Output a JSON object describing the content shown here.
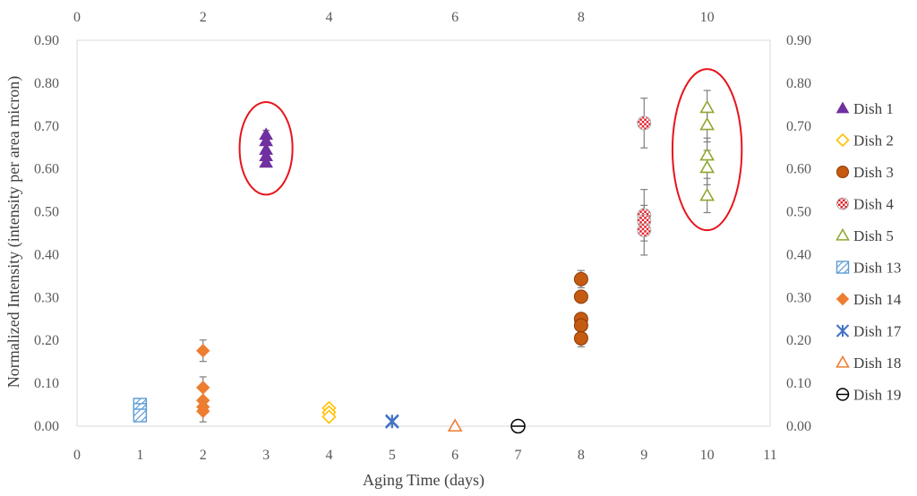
{
  "chart_data": {
    "type": "scatter",
    "xlabel": "Aging Time (days)",
    "ylabel": "Normalized Intensity (intensity per area micron)",
    "xlim": [
      0,
      11
    ],
    "ylim": [
      0,
      0.9
    ],
    "x_ticks": [
      "0",
      "1",
      "2",
      "3",
      "4",
      "5",
      "6",
      "7",
      "8",
      "9",
      "10",
      "11"
    ],
    "x2_ticks": [
      "0",
      "2",
      "4",
      "6",
      "8",
      "10"
    ],
    "y_ticks": [
      "0.00",
      "0.10",
      "0.20",
      "0.30",
      "0.40",
      "0.50",
      "0.60",
      "0.70",
      "0.80",
      "0.90"
    ],
    "grid": false,
    "legend_position": "right",
    "series": [
      {
        "name": "Dish 1",
        "marker": "triangle-filled",
        "color": "#7030a0",
        "x": [
          3,
          3,
          3,
          3,
          3
        ],
        "y": [
          0.68,
          0.665,
          0.645,
          0.63,
          0.615
        ],
        "err": [
          0.01,
          0.01,
          0.01,
          0.01,
          0.01
        ]
      },
      {
        "name": "Dish 2",
        "marker": "diamond-open",
        "color": "#ffc000",
        "x": [
          4,
          4,
          4
        ],
        "y": [
          0.042,
          0.032,
          0.022
        ],
        "err": [
          0,
          0,
          0
        ]
      },
      {
        "name": "Dish 3",
        "marker": "circle-filled",
        "color": "#c55a11",
        "x": [
          8,
          8,
          8,
          8,
          8
        ],
        "y": [
          0.343,
          0.302,
          0.25,
          0.235,
          0.205
        ],
        "err": [
          0.02,
          0,
          0,
          0,
          0.02
        ]
      },
      {
        "name": "Dish 4",
        "marker": "circle-checker",
        "color": "#e0202a",
        "x": [
          9,
          9,
          9,
          9
        ],
        "y": [
          0.707,
          0.492,
          0.478,
          0.457
        ],
        "err": [
          0.058,
          0.06,
          0,
          0.058
        ]
      },
      {
        "name": "Dish 5",
        "marker": "triangle-open",
        "color": "#8fa832",
        "x": [
          10,
          10,
          10,
          10,
          10
        ],
        "y": [
          0.743,
          0.703,
          0.632,
          0.603,
          0.538
        ],
        "err": [
          0.04,
          0.04,
          0.04,
          0.04,
          0.04
        ]
      },
      {
        "name": "Dish 13",
        "marker": "square-hatched",
        "color": "#5b9bd5",
        "x": [
          1,
          1,
          1
        ],
        "y": [
          0.05,
          0.038,
          0.025
        ],
        "err": [
          0,
          0,
          0
        ]
      },
      {
        "name": "Dish 14",
        "marker": "diamond-filled",
        "color": "#ed7d31",
        "x": [
          2,
          2,
          2,
          2,
          2
        ],
        "y": [
          0.176,
          0.09,
          0.06,
          0.045,
          0.035
        ],
        "err": [
          0.025,
          0.025,
          0,
          0,
          0.025
        ]
      },
      {
        "name": "Dish 17",
        "marker": "asterisk",
        "color": "#4472c4",
        "x": [
          5,
          5
        ],
        "y": [
          0.012,
          0.01
        ],
        "err": [
          0,
          0
        ]
      },
      {
        "name": "Dish 18",
        "marker": "triangle-open",
        "color": "#ed7d31",
        "x": [
          6
        ],
        "y": [
          0.0
        ],
        "err": [
          0
        ]
      },
      {
        "name": "Dish 19",
        "marker": "circle-striked",
        "color": "#000000",
        "x": [
          7
        ],
        "y": [
          0.0
        ],
        "err": [
          0
        ]
      }
    ],
    "annotations": [
      {
        "shape": "ellipse",
        "color": "#e8141b",
        "cx": 3,
        "cy": 0.648,
        "rx": 0.42,
        "ry": 0.108
      },
      {
        "shape": "ellipse",
        "color": "#e8141b",
        "cx": 10,
        "cy": 0.645,
        "rx": 0.55,
        "ry": 0.188
      }
    ]
  }
}
